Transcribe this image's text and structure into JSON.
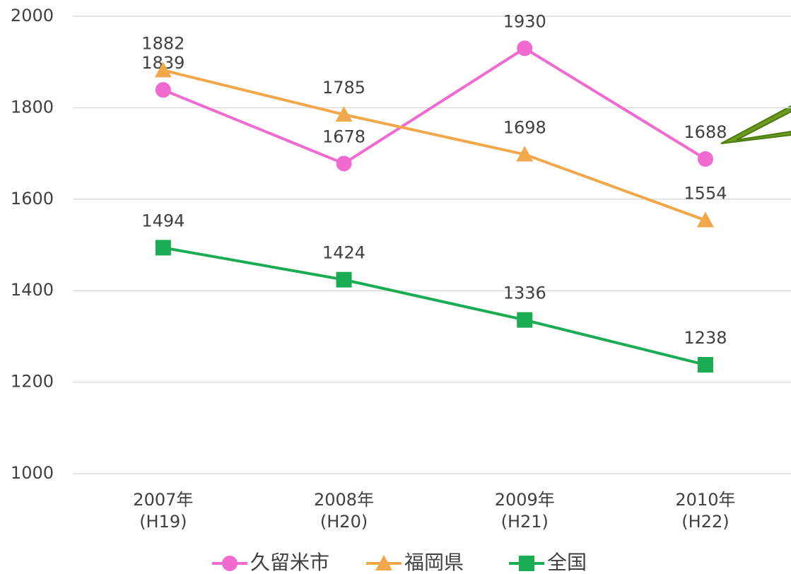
{
  "chart_data": {
    "type": "line",
    "categories": [
      "2007年",
      "2008年",
      "2009年",
      "2010年"
    ],
    "category_sublabels": [
      "(H19)",
      "(H20)",
      "(H21)",
      "(H22)"
    ],
    "series": [
      {
        "name": "久留米市",
        "color": "#f06ad0",
        "marker": "circle",
        "values": [
          1839,
          1678,
          1930,
          1688
        ]
      },
      {
        "name": "福岡県",
        "color": "#f2a74a",
        "marker": "triangle",
        "values": [
          1882,
          1785,
          1698,
          1554
        ]
      },
      {
        "name": "全国",
        "color": "#1aac52",
        "marker": "square",
        "values": [
          1494,
          1424,
          1336,
          1238
        ]
      }
    ],
    "ylim": [
      1000,
      2000
    ],
    "yticks": [
      1000,
      1200,
      1400,
      1600,
      1800,
      2000
    ],
    "grid": true,
    "legend": "bottom"
  }
}
